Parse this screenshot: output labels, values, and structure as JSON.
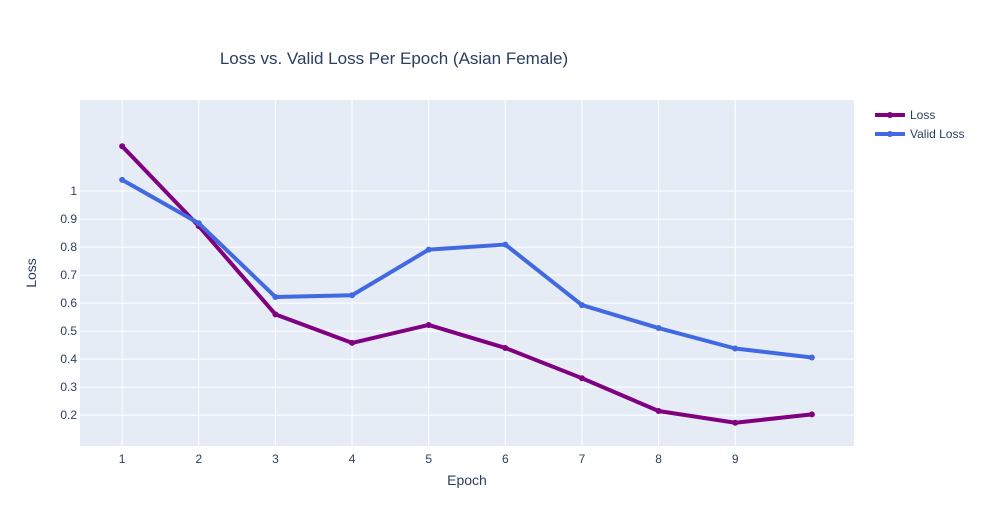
{
  "chart_data": {
    "type": "line",
    "title": "Loss vs. Valid Loss Per Epoch (Asian Female)",
    "xlabel": "Epoch",
    "ylabel": "Loss",
    "x": [
      1,
      2,
      3,
      4,
      5,
      6,
      7,
      8,
      9,
      10
    ],
    "xticks": [
      "1",
      "2",
      "3",
      "4",
      "5",
      "6",
      "7",
      "8",
      "9"
    ],
    "yticks": [
      "0.2",
      "0.3",
      "0.4",
      "0.5",
      "0.6",
      "0.7",
      "0.8",
      "0.9",
      "1"
    ],
    "xlim": [
      0.45,
      10.55
    ],
    "ylim": [
      0.09,
      1.325
    ],
    "grid": true,
    "legend_position": "top-right",
    "series": [
      {
        "name": "Loss",
        "color": "#800080",
        "values": [
          1.16,
          0.875,
          0.56,
          0.458,
          0.522,
          0.44,
          0.332,
          0.215,
          0.173,
          0.203
        ]
      },
      {
        "name": "Valid Loss",
        "color": "#4169e1",
        "values": [
          1.04,
          0.885,
          0.622,
          0.628,
          0.791,
          0.809,
          0.593,
          0.511,
          0.438,
          0.406
        ]
      }
    ]
  }
}
